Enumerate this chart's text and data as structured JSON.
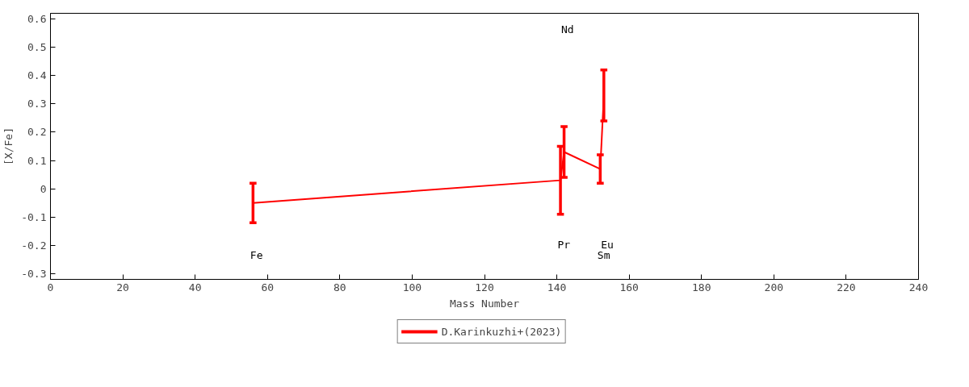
{
  "chart_data": {
    "type": "line",
    "xlabel": "Mass Number",
    "ylabel": "[X/Fe]",
    "x": [
      56,
      141,
      142,
      152,
      153
    ],
    "series": [
      {
        "name": "D.Karinkuzhi+(2023)",
        "color": "#ff0000",
        "values": [
          -0.05,
          0.03,
          0.13,
          0.07,
          0.33
        ],
        "errors": [
          0.07,
          0.12,
          0.09,
          0.05,
          0.09
        ]
      }
    ],
    "annotations": [
      "Fe",
      "Pr",
      "Nd",
      "Sm",
      "Eu"
    ],
    "xlim": [
      0,
      240
    ],
    "xticks": [
      0,
      20,
      40,
      60,
      80,
      100,
      120,
      140,
      160,
      180,
      200,
      220,
      240
    ],
    "ylim": [
      -0.32,
      0.62
    ],
    "yticks": [
      -0.3,
      -0.2,
      -0.1,
      0,
      0.1,
      0.2,
      0.3,
      0.4,
      0.5,
      0.6
    ],
    "grid": false,
    "legend": "bottom",
    "marker": "none",
    "line_style": "solid"
  }
}
